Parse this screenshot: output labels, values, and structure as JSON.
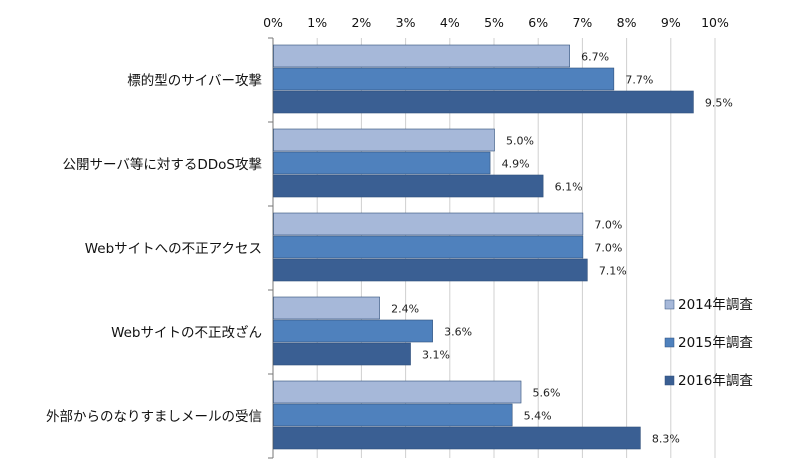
{
  "chart_data": {
    "type": "bar",
    "orientation": "horizontal",
    "title": "",
    "xlabel": "",
    "ylabel": "",
    "xlim": [
      0,
      10
    ],
    "x_ticks": [
      "0%",
      "1%",
      "2%",
      "3%",
      "4%",
      "5%",
      "6%",
      "7%",
      "8%",
      "9%",
      "10%"
    ],
    "x_axis_position": "top",
    "grid": true,
    "categories": [
      "標的型のサイバー攻撃",
      "公開サーバ等に対するDDoS攻撃",
      "Webサイトへの不正アクセス",
      "Webサイトの不正改ざん",
      "外部からのなりすましメールの受信"
    ],
    "series": [
      {
        "name": "2014年調査",
        "color": "#a6b8d9",
        "values": [
          6.7,
          5.0,
          7.0,
          2.4,
          5.6
        ],
        "labels": [
          "6.7%",
          "5.0%",
          "7.0%",
          "2.4%",
          "5.6%"
        ]
      },
      {
        "name": "2015年調査",
        "color": "#4f81bd",
        "values": [
          7.7,
          4.9,
          7.0,
          3.6,
          5.4
        ],
        "labels": [
          "7.7%",
          "4.9%",
          "7.0%",
          "3.6%",
          "5.4%"
        ]
      },
      {
        "name": "2016年調査",
        "color": "#3a5f93",
        "values": [
          9.5,
          6.1,
          7.1,
          3.1,
          8.3
        ],
        "labels": [
          "9.5%",
          "6.1%",
          "7.1%",
          "3.1%",
          "8.3%"
        ]
      }
    ],
    "legend_position": "right"
  }
}
